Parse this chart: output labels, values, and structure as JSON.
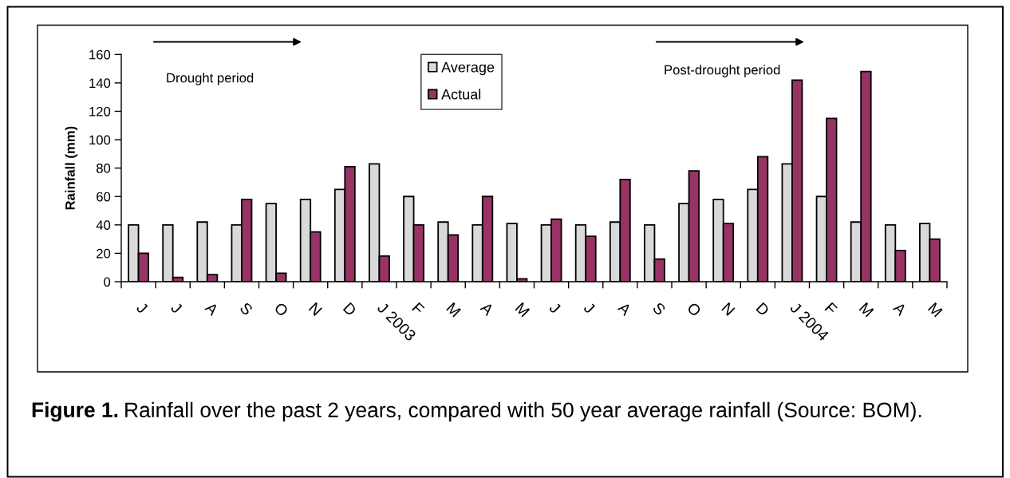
{
  "chart_data": {
    "type": "bar",
    "categories": [
      "J",
      "J",
      "A",
      "S",
      "O",
      "N",
      "D",
      "J 2003",
      "F",
      "M",
      "A",
      "M",
      "J",
      "J",
      "A",
      "S",
      "O",
      "N",
      "D",
      "J 2004",
      "F",
      "M",
      "A",
      "M"
    ],
    "ylabel": "Rainfall (mm)",
    "ylim": [
      0,
      160
    ],
    "yticks": [
      0,
      20,
      40,
      60,
      80,
      100,
      120,
      140,
      160
    ],
    "series": [
      {
        "name": "Average",
        "color": "#d9d9d9",
        "values": [
          40,
          40,
          42,
          40,
          55,
          58,
          65,
          83,
          60,
          42,
          40,
          41,
          40,
          40,
          42,
          40,
          55,
          58,
          65,
          83,
          60,
          42,
          40,
          41
        ]
      },
      {
        "name": "Actual",
        "color": "#993366",
        "values": [
          20,
          3,
          5,
          58,
          6,
          35,
          81,
          18,
          40,
          33,
          60,
          2,
          44,
          32,
          72,
          16,
          78,
          41,
          88,
          142,
          115,
          148,
          22,
          30
        ]
      }
    ],
    "legend": "top",
    "annotations": [
      "Drought period",
      "Post-drought period",
      "Figure 1.",
      "Rainfall over the past 2 years, compared with 50 year average rainfall (Source: BOM)."
    ]
  }
}
